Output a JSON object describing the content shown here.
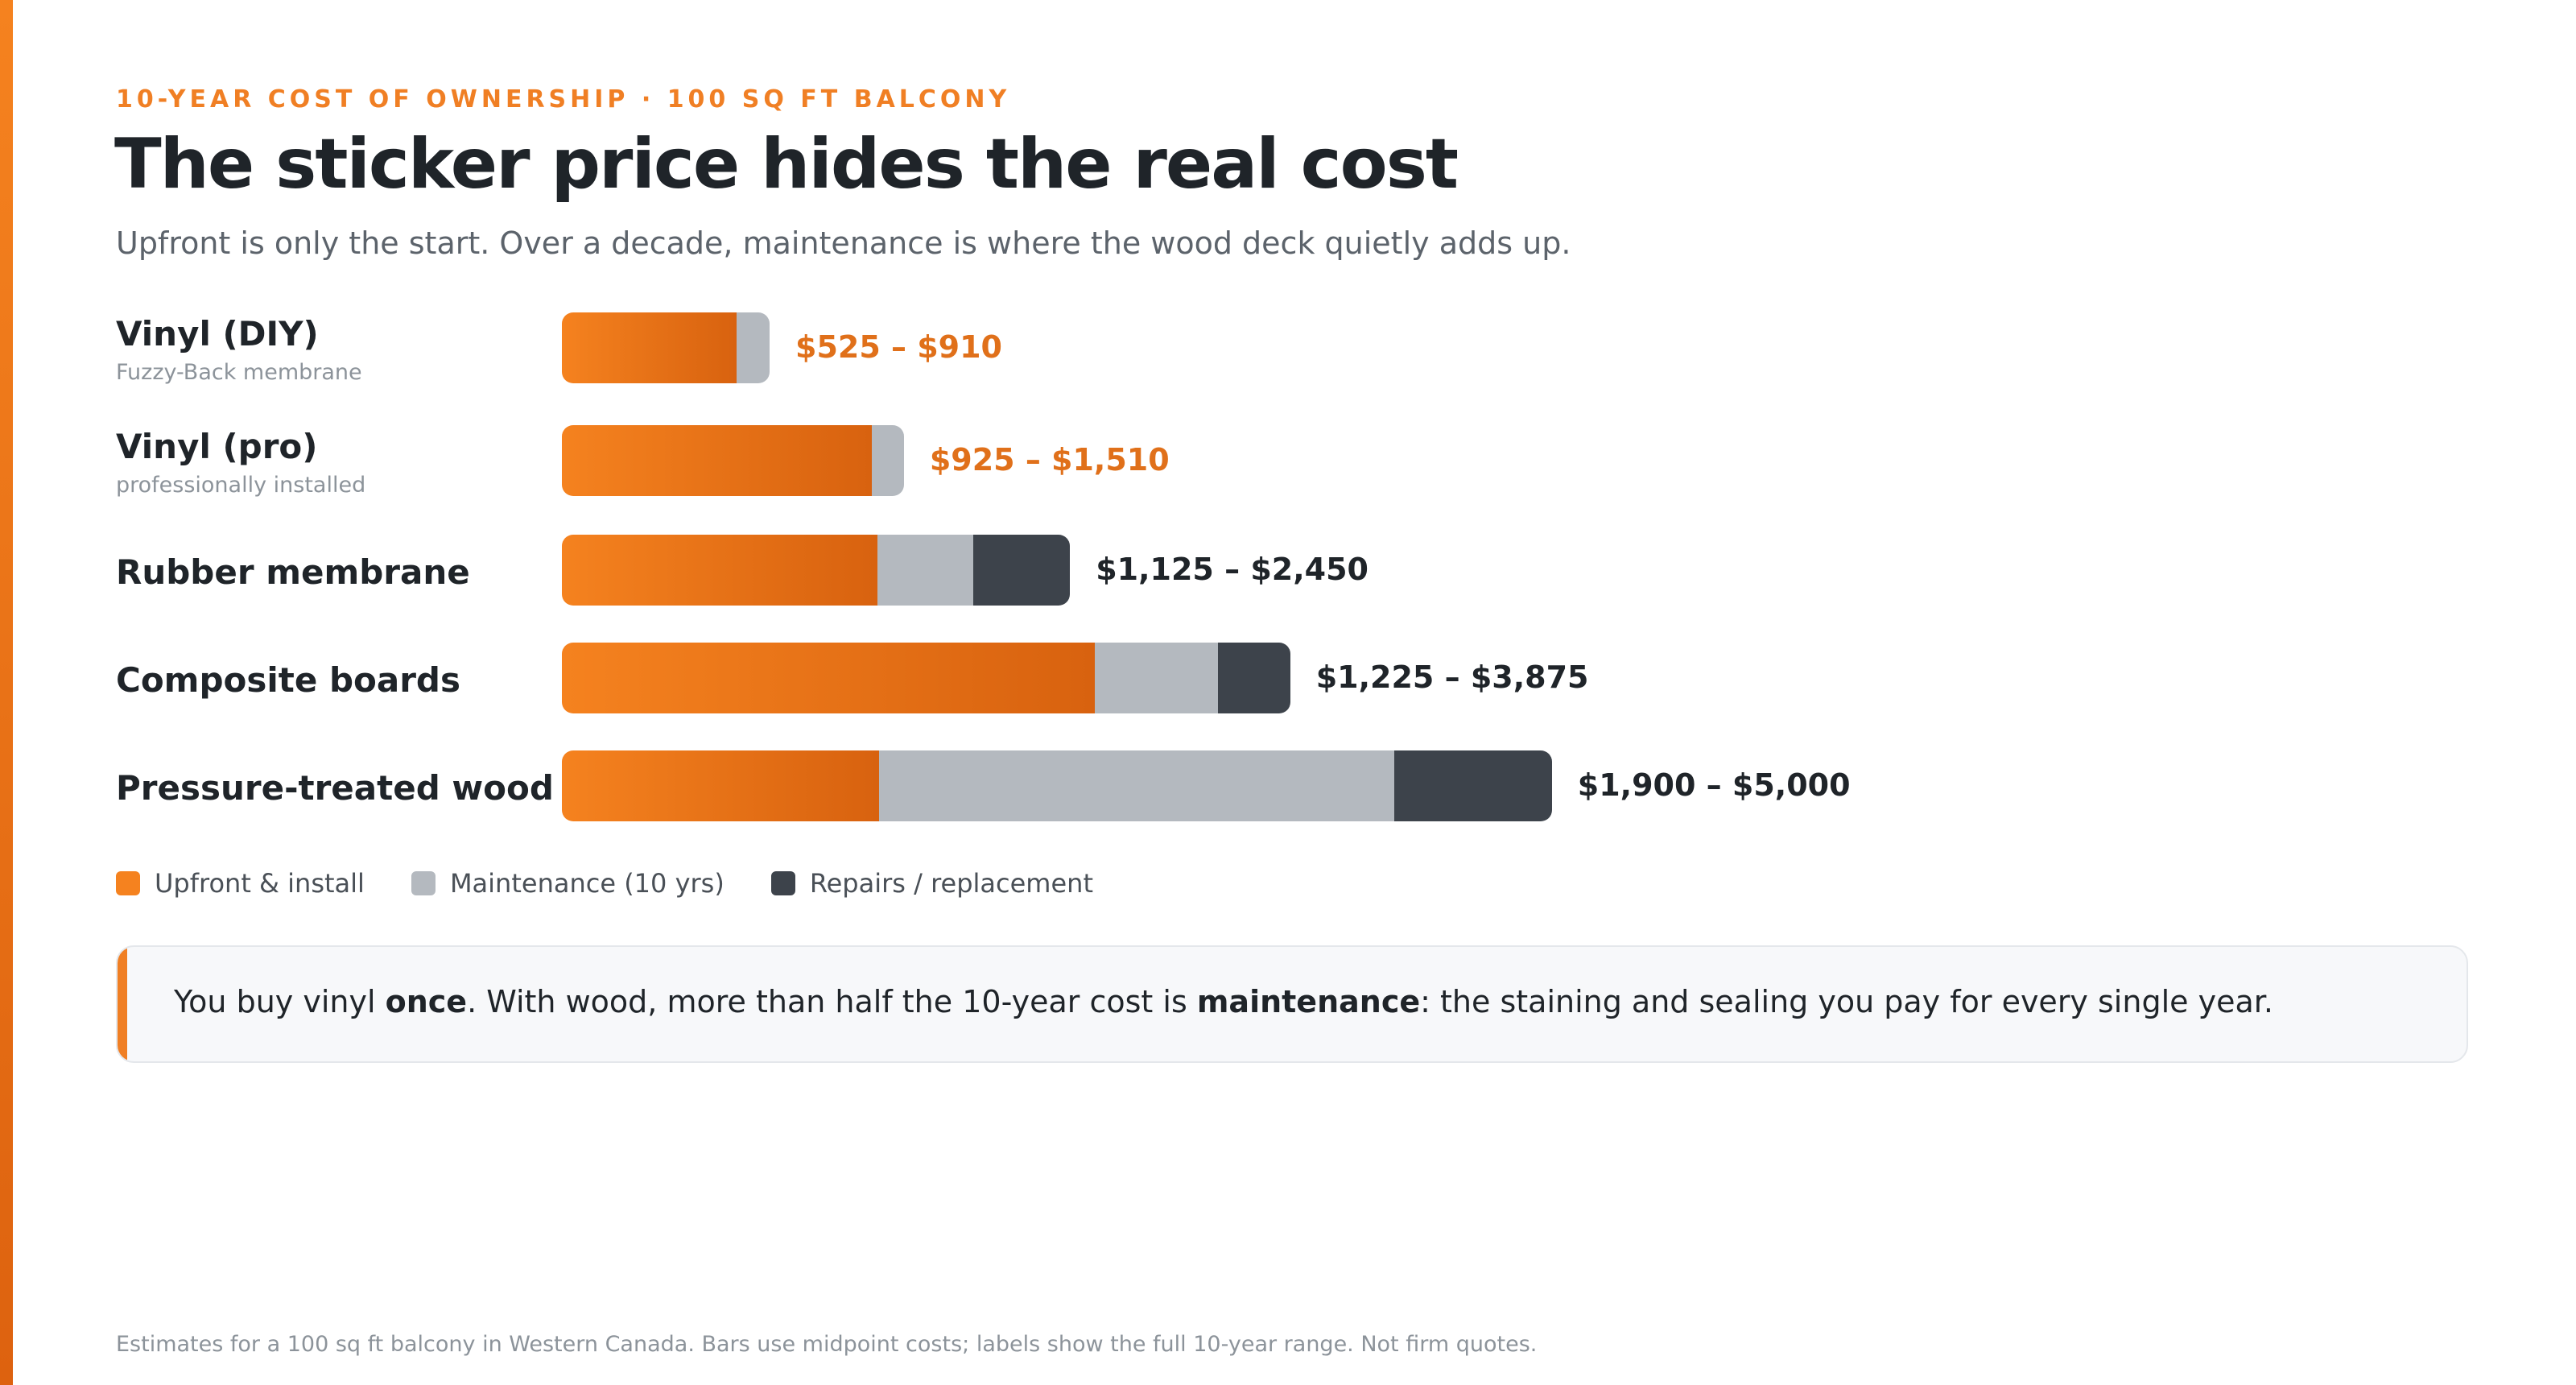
{
  "header": {
    "eyebrow": "10-YEAR COST OF OWNERSHIP · 100 SQ FT BALCONY",
    "title": "The sticker price hides the real cost",
    "subtitle": "Upfront is only the start. Over a decade, maintenance is where the wood deck quietly adds up."
  },
  "chart_data": {
    "type": "bar",
    "orientation": "horizontal",
    "stacked": true,
    "unit": "CAD, 10-year midpoint cost",
    "xlim": [
      0,
      5000
    ],
    "grid": false,
    "legend_position": "bottom-left",
    "categories": [
      "Vinyl (DIY)",
      "Vinyl (pro)",
      "Rubber membrane",
      "Composite boards",
      "Pressure-treated wood"
    ],
    "category_notes": [
      "Fuzzy-Back membrane",
      "professionally installed",
      "",
      "",
      ""
    ],
    "range_labels": [
      "$525 – $910",
      "$925 – $1,510",
      "$1,125 – $2,450",
      "$1,225 – $3,875",
      "$1,900 – $5,000"
    ],
    "series": [
      {
        "name": "Upfront & install",
        "values": [
          630,
          1120,
          1140,
          1925,
          1145
        ]
      },
      {
        "name": "Maintenance (10 yrs)",
        "values": [
          120,
          115,
          345,
          445,
          1860
        ]
      },
      {
        "name": "Repairs / replacement",
        "values": [
          0,
          0,
          350,
          260,
          570
        ]
      }
    ]
  },
  "colors": {
    "accent": "#f07f24",
    "upfront": "#f5821f",
    "upfront_dark": "#d8620f",
    "maintenance": "#b4b9bf",
    "repairs": "#3d434b",
    "range_highlight": "#e0701a",
    "range_default": "#1f2429"
  },
  "legend": [
    {
      "label": "Upfront & install",
      "color": "#f5821f"
    },
    {
      "label": "Maintenance (10 yrs)",
      "color": "#b4b9bf"
    },
    {
      "label": "Repairs / replacement",
      "color": "#3d434b"
    }
  ],
  "callout": {
    "p1": "You buy vinyl ",
    "b1": "once",
    "p2": ". With wood, more than half the 10-year cost is ",
    "b2": "maintenance",
    "p3": ": the staining and sealing you pay for every single year."
  },
  "footnote": "Estimates for a 100 sq ft balcony in Western Canada. Bars use midpoint costs; labels show the full 10-year range. Not firm quotes."
}
